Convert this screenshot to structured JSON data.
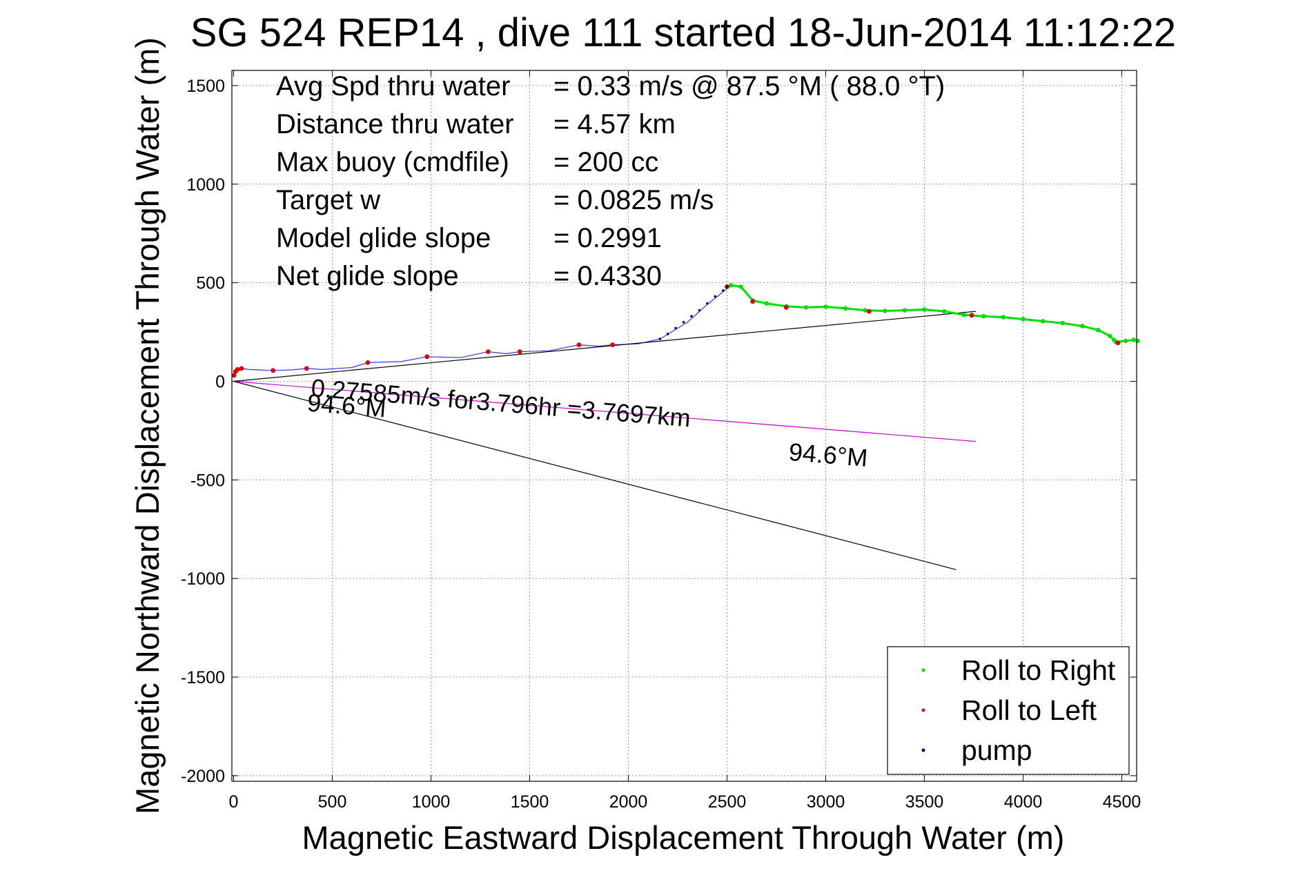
{
  "chart_data": {
    "type": "line",
    "title": "SG 524   REP14  , dive 111 started 18-Jun-2014 11:12:22",
    "xlabel": "Magnetic Eastward Displacement Through Water (m)",
    "ylabel": "Magnetic Northward Displacement Through Water (m)",
    "xlim": [
      0,
      4580
    ],
    "ylim": [
      -2040,
      1560
    ],
    "xticks": [
      0,
      500,
      1000,
      1500,
      2000,
      2500,
      3000,
      3500,
      4000,
      4500
    ],
    "yticks": [
      1500,
      1000,
      500,
      0,
      -500,
      -1000,
      -1500,
      -2000
    ],
    "grid": true,
    "legend_position": "bottom-right",
    "stats": [
      {
        "label": "Avg Spd thru water",
        "value": "=  0.33 m/s @  87.5 °M ( 88.0 °T)"
      },
      {
        "label": "Distance thru water",
        "value": "=  4.57 km"
      },
      {
        "label": "Max buoy (cmdfile)",
        "value": "= 200 cc"
      },
      {
        "label": "Target w",
        "value": "= 0.0825 m/s"
      },
      {
        "label": "Model glide slope",
        "value": "= 0.2991"
      },
      {
        "label": "Net glide slope",
        "value": "= 0.4330"
      }
    ],
    "annotations": [
      {
        "text": "0.27585m/s for3.796hr =3.7697km",
        "x": 390,
        "y": -75
      },
      {
        "text": "94.6°M",
        "x": 370,
        "y": -150
      },
      {
        "text": "94.6°M",
        "x": 2810,
        "y": -400
      }
    ],
    "series": [
      {
        "name": "Roll to Right",
        "color": "#00dd00",
        "style": "markers",
        "x": [
          2520,
          2570,
          2630,
          2700,
          2800,
          2900,
          3000,
          3100,
          3200,
          3300,
          3400,
          3500,
          3600,
          3700,
          3800,
          3900,
          4000,
          4100,
          4200,
          4300,
          4380,
          4440,
          4460,
          4470,
          4520,
          4560,
          4580
        ],
        "y": [
          487,
          480,
          410,
          395,
          380,
          375,
          378,
          370,
          360,
          357,
          360,
          364,
          355,
          337,
          330,
          325,
          315,
          305,
          295,
          280,
          260,
          230,
          210,
          200,
          205,
          210,
          205
        ]
      },
      {
        "name": "Roll to Left",
        "color": "#dd0000",
        "style": "markers",
        "x": [
          2,
          10,
          20,
          40,
          200,
          370,
          680,
          980,
          1290,
          1450,
          1750,
          1920,
          2500,
          2630,
          2800,
          3220,
          3740,
          4480
        ],
        "y": [
          30,
          50,
          60,
          65,
          55,
          65,
          95,
          125,
          150,
          150,
          185,
          185,
          480,
          405,
          375,
          355,
          335,
          195
        ]
      },
      {
        "name": "pump",
        "color": "#000080",
        "style": "markers",
        "x": [
          2160,
          2200,
          2240,
          2280,
          2320,
          2360,
          2400,
          2440,
          2480,
          2500
        ],
        "y": [
          215,
          240,
          270,
          300,
          330,
          360,
          395,
          430,
          460,
          480
        ]
      },
      {
        "name": "",
        "color": "#3333ff",
        "style": "line",
        "x": [
          0,
          5,
          15,
          40,
          80,
          200,
          300,
          370,
          450,
          600,
          680,
          850,
          980,
          1150,
          1290,
          1380,
          1450,
          1600,
          1750,
          1850,
          1920,
          2050,
          2160,
          2300,
          2400,
          2500,
          2520
        ],
        "y": [
          20,
          35,
          55,
          65,
          60,
          55,
          58,
          65,
          60,
          70,
          95,
          100,
          125,
          120,
          150,
          140,
          150,
          155,
          185,
          178,
          185,
          190,
          215,
          300,
          390,
          470,
          487
        ]
      },
      {
        "name": "",
        "color": "#000000",
        "style": "line",
        "x": [
          0,
          3760
        ],
        "y": [
          0,
          355
        ]
      },
      {
        "name": "",
        "color": "#000000",
        "style": "line",
        "x": [
          0,
          3660
        ],
        "y": [
          0,
          -955
        ]
      },
      {
        "name": "",
        "color": "#cc00cc",
        "style": "line",
        "x": [
          0,
          3760
        ],
        "y": [
          0,
          -305
        ]
      }
    ]
  }
}
